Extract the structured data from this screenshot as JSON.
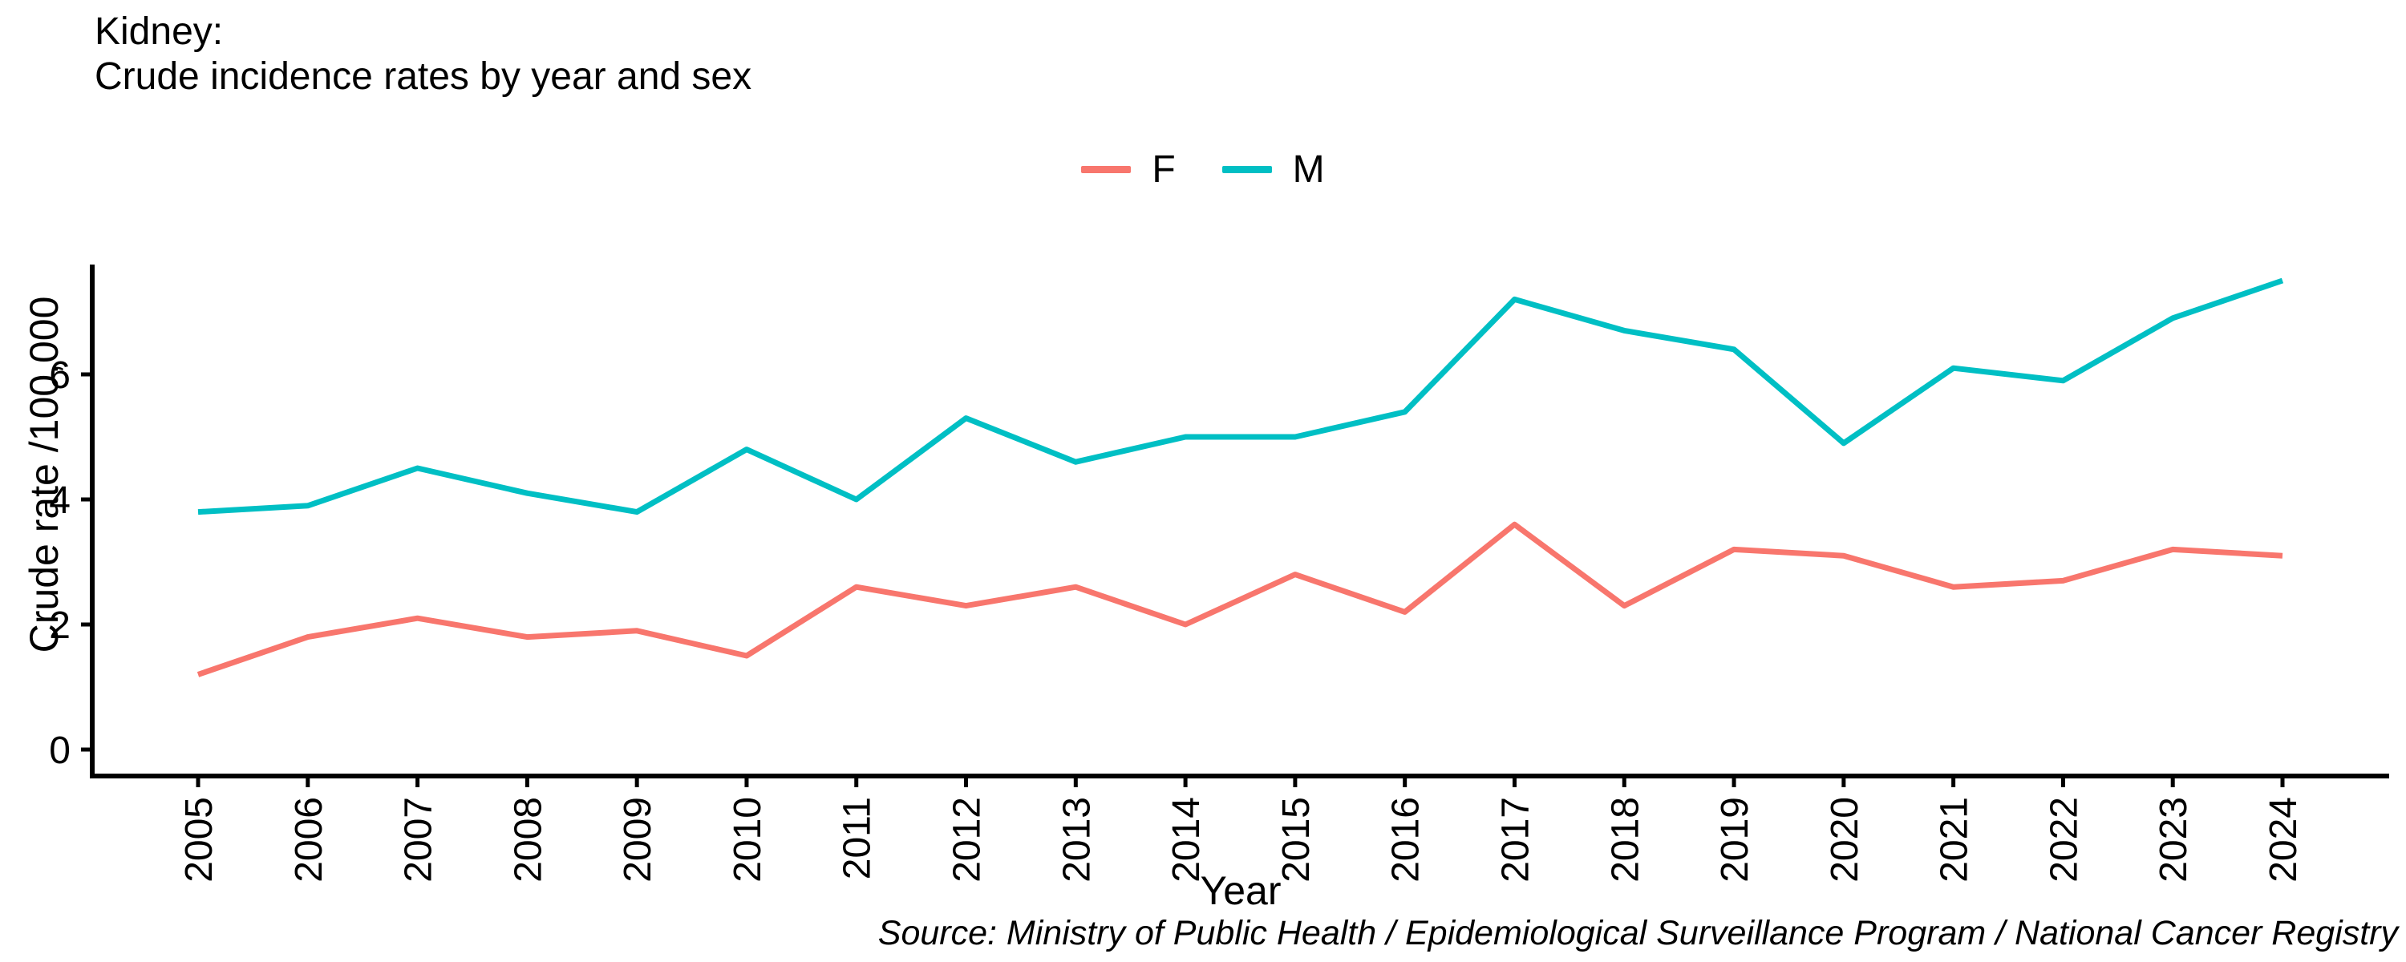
{
  "title": {
    "line1": "Kidney:",
    "line2": "Crude incidence rates by year and sex"
  },
  "source": "Source: Ministry of Public Health / Epidemiological Surveillance Program / National Cancer Registry",
  "chart_data": {
    "type": "line",
    "title": "Kidney: Crude incidence rates by year and sex",
    "xlabel": "Year",
    "ylabel": "Crude rate /100,000",
    "categories": [
      "2005",
      "2006",
      "2007",
      "2008",
      "2009",
      "2010",
      "2011",
      "2012",
      "2013",
      "2014",
      "2015",
      "2016",
      "2017",
      "2018",
      "2019",
      "2020",
      "2021",
      "2022",
      "2023",
      "2024"
    ],
    "yticks": [
      0,
      2,
      4,
      6
    ],
    "ylim": [
      -0.42,
      7.76
    ],
    "grid": false,
    "legend_position": "top-center",
    "axis_color": "#000000",
    "series": [
      {
        "name": "F",
        "color": "#F8766D",
        "values": [
          1.2,
          1.8,
          2.1,
          1.8,
          1.9,
          1.5,
          2.6,
          2.3,
          2.6,
          2.0,
          2.8,
          2.2,
          3.6,
          2.3,
          3.2,
          3.1,
          2.6,
          2.7,
          3.2,
          3.1
        ]
      },
      {
        "name": "M",
        "color": "#00BFC4",
        "values": [
          3.8,
          3.9,
          4.5,
          4.1,
          3.8,
          4.8,
          4.0,
          5.3,
          4.6,
          5.0,
          5.0,
          5.4,
          7.2,
          6.7,
          6.4,
          4.9,
          6.1,
          5.9,
          6.9,
          7.5
        ]
      }
    ]
  }
}
